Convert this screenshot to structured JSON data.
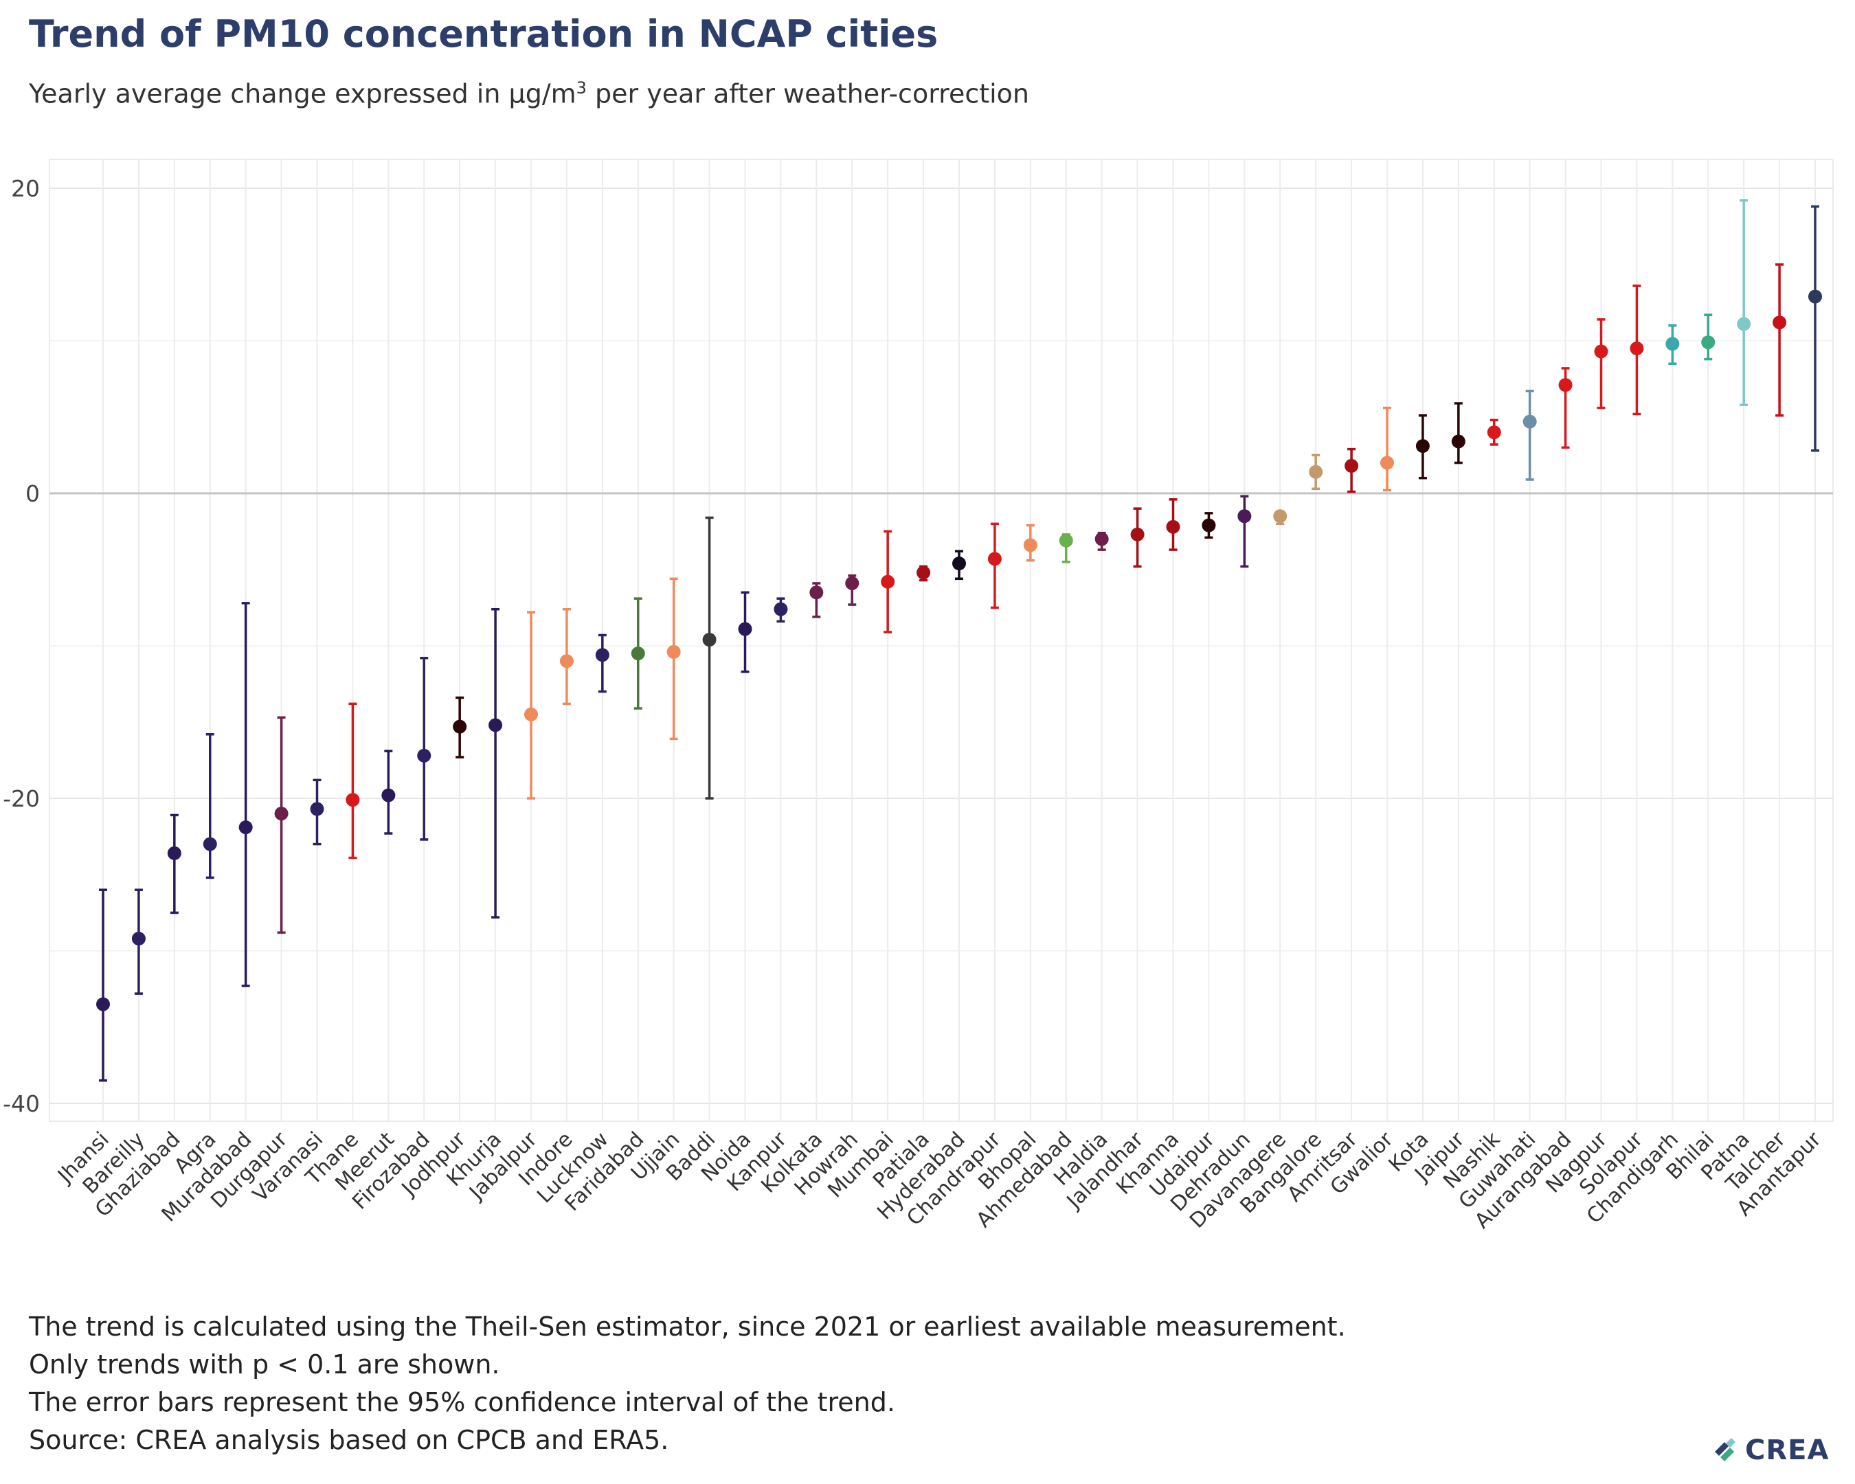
{
  "title": "Trend of PM10 concentration in NCAP cities",
  "subtitle_prefix": "Yearly average change expressed in µg/m",
  "subtitle_sup": "3",
  "subtitle_suffix": " per year after weather-correction",
  "notes": [
    "The trend is calculated using the Theil-Sen estimator, since 2021 or earliest available measurement.",
    "Only trends with p < 0.1 are shown.",
    "The error bars represent the 95% confidence interval of the trend.",
    "Source: CREA analysis based on CPCB and ERA5."
  ],
  "logo_text": "CREA",
  "chart_data": {
    "type": "scatter",
    "title": "Trend of PM10 concentration in NCAP cities",
    "xlabel": "",
    "ylabel": "",
    "ylim": [
      -41,
      22
    ],
    "yticks": [
      20,
      0,
      -20,
      -40
    ],
    "ytick_labels": [
      "20",
      "0",
      "-20",
      "-40"
    ],
    "grid": true,
    "zero_line": true,
    "legend": "none",
    "points": [
      {
        "city": "Jhansi",
        "value": -33.5,
        "low": -38.5,
        "high": -26.0,
        "color": "#2b1a5a"
      },
      {
        "city": "Bareilly",
        "value": -29.2,
        "low": -32.8,
        "high": -26.0,
        "color": "#2d2162"
      },
      {
        "city": "Ghaziabad",
        "value": -23.6,
        "low": -27.5,
        "high": -21.1,
        "color": "#2b1a5a"
      },
      {
        "city": "Agra",
        "value": -23.0,
        "low": -25.2,
        "high": -15.8,
        "color": "#2d2162"
      },
      {
        "city": "Muradabad",
        "value": -21.9,
        "low": -32.3,
        "high": -7.2,
        "color": "#2b1a5a"
      },
      {
        "city": "Durgapur",
        "value": -21.0,
        "low": -28.8,
        "high": -14.7,
        "color": "#6b1f4a"
      },
      {
        "city": "Varanasi",
        "value": -20.7,
        "low": -23.0,
        "high": -18.8,
        "color": "#2d2162"
      },
      {
        "city": "Thane",
        "value": -20.1,
        "low": -23.9,
        "high": -13.8,
        "color": "#d7191c"
      },
      {
        "city": "Meerut",
        "value": -19.8,
        "low": -22.3,
        "high": -16.9,
        "color": "#2b1a5a"
      },
      {
        "city": "Firozabad",
        "value": -17.2,
        "low": -22.7,
        "high": -10.8,
        "color": "#2d2162"
      },
      {
        "city": "Jodhpur",
        "value": -15.3,
        "low": -17.3,
        "high": -13.4,
        "color": "#2a0505"
      },
      {
        "city": "Khurja",
        "value": -15.2,
        "low": -27.8,
        "high": -7.6,
        "color": "#2b1a5a"
      },
      {
        "city": "Jabalpur",
        "value": -14.5,
        "low": -20.0,
        "high": -7.8,
        "color": "#ef8a5a"
      },
      {
        "city": "Indore",
        "value": -11.0,
        "low": -13.8,
        "high": -7.6,
        "color": "#ef8a5a"
      },
      {
        "city": "Lucknow",
        "value": -10.6,
        "low": -13.0,
        "high": -9.3,
        "color": "#2d2162"
      },
      {
        "city": "Faridabad",
        "value": -10.5,
        "low": -14.1,
        "high": -6.9,
        "color": "#4a7a3a"
      },
      {
        "city": "Ujjain",
        "value": -10.4,
        "low": -16.1,
        "high": -5.6,
        "color": "#ef8a5a"
      },
      {
        "city": "Baddi",
        "value": -9.6,
        "low": -20.0,
        "high": -1.6,
        "color": "#3a3838"
      },
      {
        "city": "Noida",
        "value": -8.9,
        "low": -11.7,
        "high": -6.5,
        "color": "#2b1a5a"
      },
      {
        "city": "Kanpur",
        "value": -7.6,
        "low": -8.4,
        "high": -6.9,
        "color": "#2d2162"
      },
      {
        "city": "Kolkata",
        "value": -6.5,
        "low": -8.1,
        "high": -5.9,
        "color": "#6b1f4a"
      },
      {
        "city": "Howrah",
        "value": -5.9,
        "low": -7.3,
        "high": -5.4,
        "color": "#6b1f4a"
      },
      {
        "city": "Mumbai",
        "value": -5.8,
        "low": -9.1,
        "high": -2.5,
        "color": "#d7191c"
      },
      {
        "city": "Patiala",
        "value": -5.2,
        "low": -5.7,
        "high": -4.8,
        "color": "#a50f15"
      },
      {
        "city": "Hyderabad",
        "value": -4.6,
        "low": -5.6,
        "high": -3.8,
        "color": "#120a1e"
      },
      {
        "city": "Chandrapur",
        "value": -4.3,
        "low": -7.5,
        "high": -2.0,
        "color": "#d7191c"
      },
      {
        "city": "Bhopal",
        "value": -3.4,
        "low": -4.4,
        "high": -2.1,
        "color": "#ef8a5a"
      },
      {
        "city": "Ahmedabad",
        "value": -3.1,
        "low": -4.5,
        "high": -2.7,
        "color": "#6ab04c"
      },
      {
        "city": "Haldia",
        "value": -3.0,
        "low": -3.7,
        "high": -2.6,
        "color": "#6b1f4a"
      },
      {
        "city": "Jalandhar",
        "value": -2.7,
        "low": -4.8,
        "high": -1.0,
        "color": "#a50f15"
      },
      {
        "city": "Khanna",
        "value": -2.2,
        "low": -3.7,
        "high": -0.4,
        "color": "#a50f15"
      },
      {
        "city": "Udaipur",
        "value": -2.1,
        "low": -2.9,
        "high": -1.3,
        "color": "#2a0505"
      },
      {
        "city": "Dehradun",
        "value": -1.5,
        "low": -4.8,
        "high": -0.2,
        "color": "#4a1a5a"
      },
      {
        "city": "Davanagere",
        "value": -1.5,
        "low": -2.0,
        "high": -1.2,
        "color": "#c49a6c"
      },
      {
        "city": "Bangalore",
        "value": 1.4,
        "low": 0.3,
        "high": 2.5,
        "color": "#c49a6c"
      },
      {
        "city": "Amritsar",
        "value": 1.8,
        "low": 0.1,
        "high": 2.9,
        "color": "#a50f15"
      },
      {
        "city": "Gwalior",
        "value": 2.0,
        "low": 0.2,
        "high": 5.6,
        "color": "#ef8a5a"
      },
      {
        "city": "Kota",
        "value": 3.1,
        "low": 1.0,
        "high": 5.1,
        "color": "#2a0505"
      },
      {
        "city": "Jaipur",
        "value": 3.4,
        "low": 2.0,
        "high": 5.9,
        "color": "#2a0505"
      },
      {
        "city": "Nashik",
        "value": 4.0,
        "low": 3.2,
        "high": 4.8,
        "color": "#d7191c"
      },
      {
        "city": "Guwahati",
        "value": 4.7,
        "low": 0.9,
        "high": 6.7,
        "color": "#6a8fa8"
      },
      {
        "city": "Aurangabad",
        "value": 7.1,
        "low": 3.0,
        "high": 8.2,
        "color": "#d7191c"
      },
      {
        "city": "Nagpur",
        "value": 9.3,
        "low": 5.6,
        "high": 11.4,
        "color": "#d7191c"
      },
      {
        "city": "Solapur",
        "value": 9.5,
        "low": 5.2,
        "high": 13.6,
        "color": "#d7191c"
      },
      {
        "city": "Chandigarh",
        "value": 9.8,
        "low": 8.5,
        "high": 11.0,
        "color": "#3aa8a8"
      },
      {
        "city": "Bhilai",
        "value": 9.9,
        "low": 8.8,
        "high": 11.7,
        "color": "#3aaa80"
      },
      {
        "city": "Patna",
        "value": 11.1,
        "low": 5.8,
        "high": 19.2,
        "color": "#7ec8c8"
      },
      {
        "city": "Talcher",
        "value": 11.2,
        "low": 5.1,
        "high": 15.0,
        "color": "#c8101a"
      },
      {
        "city": "Anantapur",
        "value": 12.9,
        "low": 2.8,
        "high": 18.8,
        "color": "#2a3a5c"
      }
    ]
  }
}
